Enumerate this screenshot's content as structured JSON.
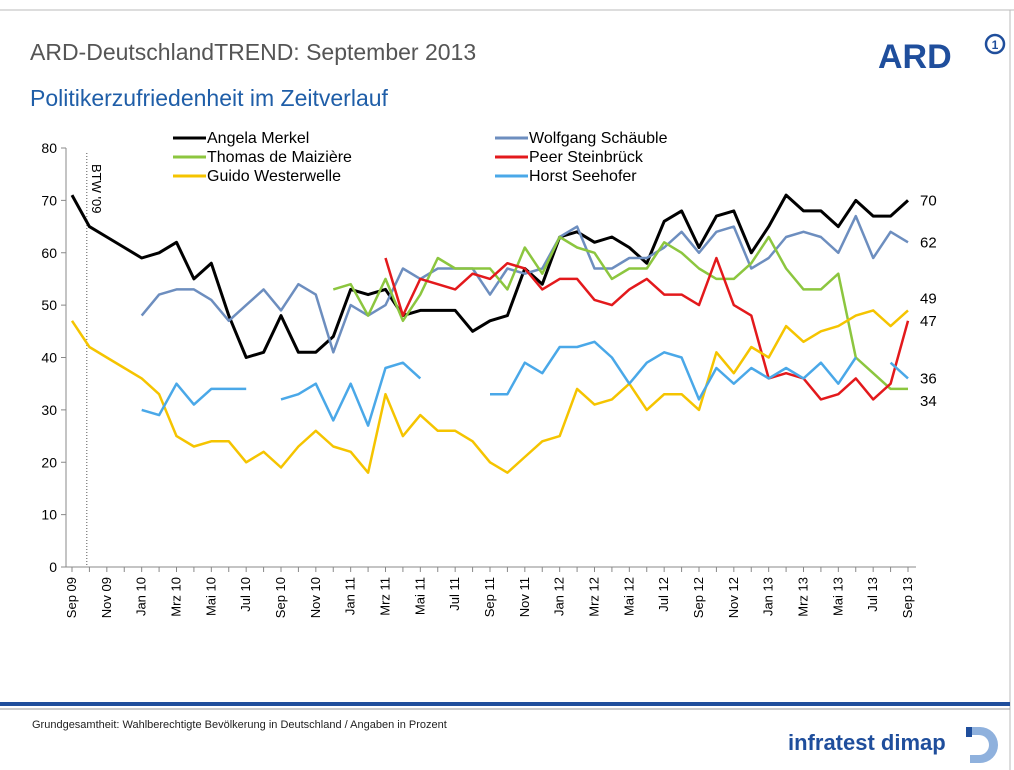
{
  "header": {
    "title": "ARD-DeutschlandTREND: September 2013",
    "subtitle": "Politikerzufriedenheit im Zeitverlauf",
    "logo": "ARD"
  },
  "footer": {
    "note": "Grundgesamtheit: Wahlberechtigte Bevölkerung in Deutschland / Angaben in Prozent",
    "brand": "infratest dimap"
  },
  "chart_data": {
    "type": "line",
    "annotation": "BTW '09",
    "categories": [
      "Sep 09",
      null,
      "Nov 09",
      null,
      "Jan 10",
      null,
      "Mrz 10",
      null,
      "Mai 10",
      null,
      "Jul 10",
      null,
      "Sep 10",
      null,
      "Nov 10",
      null,
      "Jan 11",
      null,
      "Mrz 11",
      null,
      "Mai 11",
      null,
      "Jul 11",
      null,
      "Sep 11",
      null,
      "Nov 11",
      null,
      "Jan 12",
      null,
      "Mrz 12",
      null,
      "Mai 12",
      null,
      "Jul 12",
      null,
      "Sep 12",
      null,
      "Nov 12",
      null,
      "Jan 13",
      null,
      "Mrz 13",
      null,
      "Mai 13",
      null,
      "Jul 13",
      null,
      "Sep 13"
    ],
    "ylim": [
      0,
      80
    ],
    "yticks": [
      0,
      10,
      20,
      30,
      40,
      50,
      60,
      70,
      80
    ],
    "grid": false,
    "series": [
      {
        "name": "Angela Merkel",
        "color": "#000000",
        "values": [
          71,
          65,
          63,
          61,
          59,
          60,
          62,
          55,
          58,
          48,
          40,
          41,
          48,
          41,
          41,
          44,
          53,
          52,
          53,
          48,
          49,
          49,
          49,
          45,
          47,
          48,
          57,
          54,
          63,
          64,
          62,
          63,
          61,
          58,
          66,
          68,
          61,
          67,
          68,
          60,
          65,
          71,
          68,
          68,
          65,
          70,
          67,
          67,
          70
        ]
      },
      {
        "name": "Wolfgang Schäuble",
        "color": "#6d8ebf",
        "values": [
          null,
          null,
          null,
          null,
          48,
          52,
          53,
          53,
          51,
          47,
          50,
          53,
          49,
          54,
          52,
          41,
          50,
          48,
          50,
          57,
          55,
          57,
          57,
          57,
          52,
          57,
          56,
          57,
          63,
          65,
          57,
          57,
          59,
          59,
          61,
          64,
          60,
          64,
          65,
          57,
          59,
          63,
          64,
          63,
          60,
          67,
          59,
          64,
          62
        ]
      },
      {
        "name": "Thomas de Maizière",
        "color": "#8cc63f",
        "values": [
          null,
          null,
          null,
          null,
          null,
          null,
          null,
          null,
          null,
          null,
          null,
          null,
          null,
          null,
          null,
          53,
          54,
          48,
          55,
          47,
          52,
          59,
          57,
          57,
          57,
          53,
          61,
          56,
          63,
          61,
          60,
          55,
          57,
          57,
          62,
          60,
          57,
          55,
          55,
          58,
          63,
          57,
          53,
          53,
          56,
          40,
          37,
          34,
          34
        ]
      },
      {
        "name": "Peer Steinbrück",
        "color": "#e3191c",
        "values": [
          null,
          null,
          null,
          null,
          null,
          null,
          null,
          null,
          null,
          null,
          null,
          null,
          null,
          null,
          null,
          null,
          null,
          null,
          59,
          48,
          55,
          54,
          53,
          56,
          55,
          58,
          57,
          53,
          55,
          55,
          51,
          50,
          53,
          55,
          52,
          52,
          50,
          59,
          50,
          48,
          36,
          37,
          36,
          32,
          33,
          36,
          32,
          35,
          47
        ]
      },
      {
        "name": "Guido Westerwelle",
        "color": "#f5c400",
        "values": [
          47,
          42,
          40,
          38,
          36,
          33,
          25,
          23,
          24,
          24,
          20,
          22,
          19,
          23,
          26,
          23,
          22,
          18,
          33,
          25,
          29,
          26,
          26,
          24,
          20,
          18,
          21,
          24,
          25,
          34,
          31,
          32,
          35,
          30,
          33,
          33,
          30,
          41,
          37,
          42,
          40,
          46,
          43,
          45,
          46,
          48,
          49,
          46,
          49
        ]
      },
      {
        "name": "Horst Seehofer",
        "color": "#4aa8e8",
        "values": [
          null,
          null,
          null,
          null,
          30,
          29,
          35,
          31,
          34,
          34,
          34,
          null,
          32,
          33,
          35,
          28,
          35,
          27,
          38,
          39,
          36,
          null,
          null,
          null,
          33,
          33,
          39,
          37,
          42,
          42,
          43,
          40,
          35,
          39,
          41,
          40,
          32,
          38,
          35,
          38,
          36,
          38,
          36,
          39,
          35,
          40,
          null,
          39,
          36
        ]
      }
    ]
  }
}
